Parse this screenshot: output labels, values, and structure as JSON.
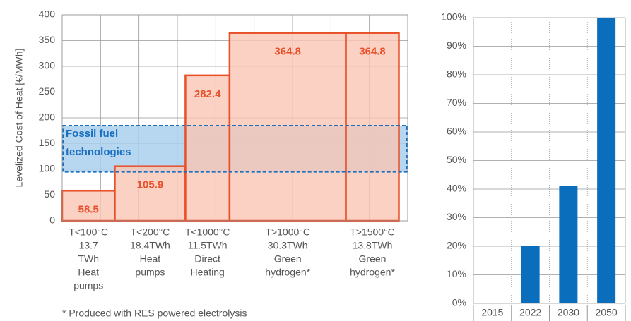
{
  "chart_data": [
    {
      "type": "variable-width-bar",
      "ylabel": "Levelized Cost of Heat [€/MWh]",
      "categories": [
        [
          "T<100°C",
          "13.7",
          "TWh",
          "Heat",
          "pumps"
        ],
        [
          "T<200°C",
          "18.4TWh",
          "Heat",
          "pumps"
        ],
        [
          "T<1000°C",
          "11.5TWh",
          "Direct",
          "Heating"
        ],
        [
          "T>1000°C",
          "30.3TWh",
          "Green",
          "hydrogen*"
        ],
        [
          "T>1500°C",
          "13.8TWh",
          "Green",
          "hydrogen*"
        ]
      ],
      "widths": [
        13.7,
        18.4,
        11.5,
        30.3,
        13.8
      ],
      "values": [
        58.5,
        105.9,
        282.4,
        364.8,
        364.8
      ],
      "color": "#f9c6b4",
      "edge_color": "#e8502a",
      "xlim": [
        0,
        90
      ],
      "xgrid": [
        0,
        10,
        20,
        30,
        40,
        50,
        60,
        70,
        80,
        90
      ],
      "ylim": [
        0,
        400
      ],
      "yticks": [
        0,
        50,
        100,
        150,
        200,
        250,
        300,
        350,
        400
      ],
      "grid": true,
      "band": {
        "label": [
          "Fossil fuel",
          "technologies"
        ],
        "range": [
          95,
          185
        ],
        "color": "#a9d0ec",
        "edge_color": "#1a6fc0"
      },
      "footnote": "* Produced with RES powered electrolysis"
    },
    {
      "type": "bar",
      "categories": [
        "2015",
        "2022",
        "2030",
        "2050"
      ],
      "values": [
        0,
        20,
        41,
        100
      ],
      "color": "#0a6ebd",
      "ylim": [
        0,
        100
      ],
      "yticks": [
        {
          "value": 0,
          "label": "0%"
        },
        {
          "value": 10,
          "label": "10%"
        },
        {
          "value": 20,
          "label": "20%"
        },
        {
          "value": 30,
          "label": "30%"
        },
        {
          "value": 40,
          "label": "40%"
        },
        {
          "value": 50,
          "label": "50%"
        },
        {
          "value": 60,
          "label": "60%"
        },
        {
          "value": 70,
          "label": "70%"
        },
        {
          "value": 80,
          "label": "80%"
        },
        {
          "value": 90,
          "label": "90%"
        },
        {
          "value": 100,
          "label": "100%"
        }
      ],
      "grid": true
    }
  ]
}
